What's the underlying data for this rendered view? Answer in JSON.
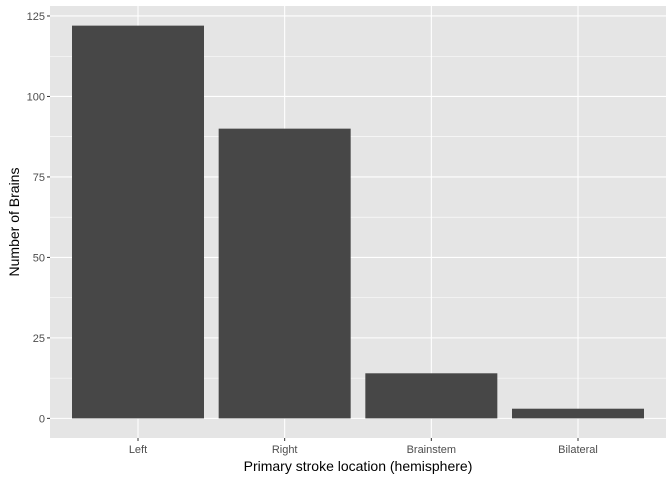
{
  "chart_data": {
    "type": "bar",
    "title": "",
    "xlabel": "Primary stroke location (hemisphere)",
    "ylabel": "Number of Brains",
    "categories": [
      "Left",
      "Right",
      "Brainstem",
      "Bilateral"
    ],
    "values": [
      122,
      90,
      14,
      3
    ],
    "ylim": [
      0,
      128
    ],
    "yticks": [
      0,
      25,
      50,
      75,
      100,
      125
    ],
    "ytick_labels": [
      "0",
      "25",
      "50",
      "75",
      "100",
      "125"
    ],
    "grid": true,
    "legend": "none",
    "colors": {
      "bar": "#474747",
      "panel_background": "#E5E5E5",
      "gridline": "#FFFFFF",
      "tick_text": "#4D4D4D",
      "tick_mark": "#333333"
    }
  }
}
